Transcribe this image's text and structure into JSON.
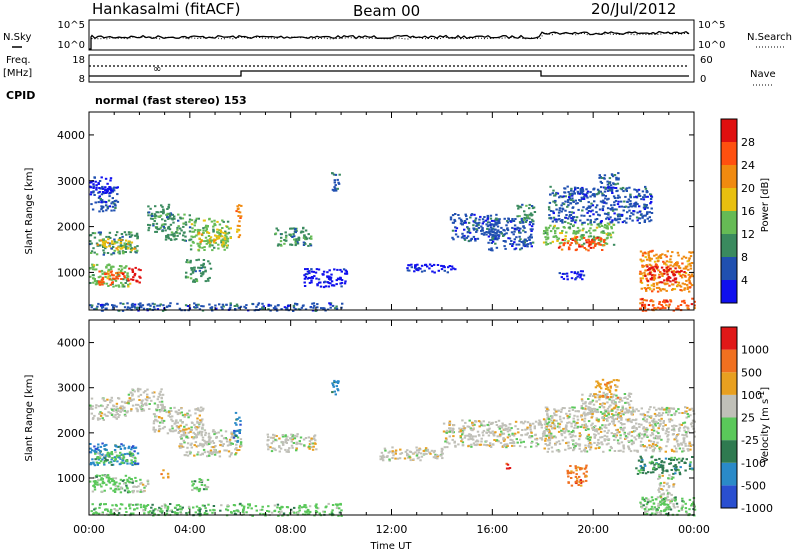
{
  "header": {
    "station": "Hankasalmi (fitACF)",
    "beam": "Beam 00",
    "date": "20/Jul/2012"
  },
  "sky_panel": {
    "left_label": "N.Sky",
    "right_label": "N.Search",
    "left_ticks": [
      "10^5",
      "10^0"
    ],
    "right_ticks": [
      "10^5",
      "10^0"
    ]
  },
  "freq_panel": {
    "left_label_line1": "Freq.",
    "left_label_line2": "[MHz]",
    "left_ticks": [
      "18",
      "8"
    ],
    "right_label": "Nave",
    "right_ticks": [
      "60",
      "0"
    ],
    "cpid_label": "CPID",
    "mode_text": "normal (fast stereo) 153"
  },
  "chart_data": [
    {
      "type": "heatmap",
      "name": "power",
      "ylabel": "Slant Range [km]",
      "xlabel": "",
      "x_ticks": [
        "00:00",
        "04:00",
        "08:00",
        "12:00",
        "16:00",
        "20:00",
        "00:00"
      ],
      "y_ticks": [
        1000,
        2000,
        3000,
        4000
      ],
      "ylim": [
        180,
        4500
      ],
      "colorbar": {
        "label": "Power [dB]",
        "ticks": [
          4,
          8,
          12,
          16,
          20,
          24,
          28
        ],
        "range": [
          0,
          30
        ],
        "colors": [
          "#1010ee",
          "#2050b0",
          "#3a8a5e",
          "#66bb55",
          "#e8c010",
          "#f08a10",
          "#ff5010",
          "#e01010"
        ]
      },
      "regions": [
        {
          "t": [
            0.0,
            1.1
          ],
          "r": [
            2350,
            2900
          ],
          "level": 1
        },
        {
          "t": [
            0.0,
            0.9
          ],
          "r": [
            2700,
            3100
          ],
          "level": 0
        },
        {
          "t": [
            0.0,
            1.9
          ],
          "r": [
            1400,
            1900
          ],
          "level": 2
        },
        {
          "t": [
            0.3,
            1.8
          ],
          "r": [
            1500,
            1750
          ],
          "level": 4
        },
        {
          "t": [
            0.0,
            1.6
          ],
          "r": [
            700,
            1200
          ],
          "level": 3
        },
        {
          "t": [
            0.3,
            1.4
          ],
          "r": [
            750,
            1050
          ],
          "level": 6
        },
        {
          "t": [
            1.5,
            2.0
          ],
          "r": [
            800,
            1150
          ],
          "level": 7
        },
        {
          "t": [
            2.3,
            3.2
          ],
          "r": [
            1900,
            2500
          ],
          "level": 2
        },
        {
          "t": [
            3.0,
            4.0
          ],
          "r": [
            1700,
            2300
          ],
          "level": 2
        },
        {
          "t": [
            4.0,
            5.6
          ],
          "r": [
            1500,
            2200
          ],
          "level": 3
        },
        {
          "t": [
            4.3,
            5.5
          ],
          "r": [
            1650,
            1950
          ],
          "level": 4
        },
        {
          "t": [
            3.8,
            4.8
          ],
          "r": [
            800,
            1300
          ],
          "level": 2
        },
        {
          "t": [
            5.8,
            6.0
          ],
          "r": [
            1500,
            2500
          ],
          "level": 5
        },
        {
          "t": [
            7.2,
            8.8
          ],
          "r": [
            1600,
            2000
          ],
          "level": 2
        },
        {
          "t": [
            8.5,
            10.2
          ],
          "r": [
            700,
            1100
          ],
          "level": 0
        },
        {
          "t": [
            9.6,
            9.9
          ],
          "r": [
            2800,
            3200
          ],
          "level": 1
        },
        {
          "t": [
            14.3,
            16.2
          ],
          "r": [
            1700,
            2300
          ],
          "level": 1
        },
        {
          "t": [
            15.8,
            17.6
          ],
          "r": [
            1500,
            2200
          ],
          "level": 1
        },
        {
          "t": [
            16.9,
            17.7
          ],
          "r": [
            2100,
            2500
          ],
          "level": 2
        },
        {
          "t": [
            18.0,
            20.8
          ],
          "r": [
            1600,
            2100
          ],
          "level": 3
        },
        {
          "t": [
            18.6,
            20.4
          ],
          "r": [
            1500,
            1800
          ],
          "level": 6
        },
        {
          "t": [
            18.2,
            22.3
          ],
          "r": [
            2100,
            2900
          ],
          "level": 1
        },
        {
          "t": [
            20.2,
            21.0
          ],
          "r": [
            2800,
            3200
          ],
          "level": 1
        },
        {
          "t": [
            18.6,
            19.6
          ],
          "r": [
            850,
            1050
          ],
          "level": 0
        },
        {
          "t": [
            21.8,
            23.9
          ],
          "r": [
            600,
            1500
          ],
          "level": 5
        },
        {
          "t": [
            22.0,
            23.6
          ],
          "r": [
            800,
            1150
          ],
          "level": 7
        },
        {
          "t": [
            21.8,
            24.0
          ],
          "r": [
            180,
            450
          ],
          "level": 6
        },
        {
          "t": [
            0.0,
            10.0
          ],
          "r": [
            180,
            350
          ],
          "level": 1
        },
        {
          "t": [
            12.5,
            14.5
          ],
          "r": [
            1000,
            1200
          ],
          "level": 0
        }
      ]
    },
    {
      "type": "heatmap",
      "name": "velocity",
      "ylabel": "Slant Range [km]",
      "xlabel": "Time UT",
      "x_ticks": [
        "00:00",
        "04:00",
        "08:00",
        "12:00",
        "16:00",
        "20:00",
        "00:00"
      ],
      "y_ticks": [
        1000,
        2000,
        3000,
        4000
      ],
      "ylim": [
        180,
        4500
      ],
      "colorbar": {
        "label": "Velocity [m s^-1]",
        "ticks": [
          1000,
          500,
          100,
          25,
          -25,
          -100,
          -500,
          -1000
        ],
        "colors": [
          "#2a4fd0",
          "#2a8ac8",
          "#2f7a50",
          "#5ac85a",
          "#c0c0b8",
          "#e8a020",
          "#f07020",
          "#e01818"
        ]
      },
      "regions": [
        {
          "t": [
            0.0,
            1.5
          ],
          "r": [
            2300,
            2800
          ],
          "level": 4
        },
        {
          "t": [
            1.5,
            3.0
          ],
          "r": [
            2500,
            3000
          ],
          "level": 4
        },
        {
          "t": [
            2.5,
            4.5
          ],
          "r": [
            2000,
            2600
          ],
          "level": 4
        },
        {
          "t": [
            3.5,
            6.0
          ],
          "r": [
            1500,
            2100
          ],
          "level": 4
        },
        {
          "t": [
            0.0,
            1.9
          ],
          "r": [
            1300,
            1800
          ],
          "level": 1
        },
        {
          "t": [
            0.2,
            1.8
          ],
          "r": [
            1350,
            1600
          ],
          "level": 3
        },
        {
          "t": [
            0.0,
            1.8
          ],
          "r": [
            700,
            1100
          ],
          "level": 3
        },
        {
          "t": [
            1.7,
            2.3
          ],
          "r": [
            700,
            1000
          ],
          "level": 4
        },
        {
          "t": [
            4.0,
            4.7
          ],
          "r": [
            700,
            1000
          ],
          "level": 3
        },
        {
          "t": [
            5.7,
            6.0
          ],
          "r": [
            1800,
            2500
          ],
          "level": 1
        },
        {
          "t": [
            7.0,
            9.0
          ],
          "r": [
            1600,
            2000
          ],
          "level": 4
        },
        {
          "t": [
            9.6,
            9.9
          ],
          "r": [
            2800,
            3200
          ],
          "level": 1
        },
        {
          "t": [
            11.5,
            14.0
          ],
          "r": [
            1400,
            1700
          ],
          "level": 4
        },
        {
          "t": [
            14.0,
            18.5
          ],
          "r": [
            1700,
            2300
          ],
          "level": 4
        },
        {
          "t": [
            18.0,
            24.0
          ],
          "r": [
            1600,
            2600
          ],
          "level": 4
        },
        {
          "t": [
            19.5,
            21.5
          ],
          "r": [
            2300,
            2900
          ],
          "level": 4
        },
        {
          "t": [
            20.0,
            21.0
          ],
          "r": [
            2800,
            3200
          ],
          "level": 5
        },
        {
          "t": [
            18.9,
            19.7
          ],
          "r": [
            850,
            1300
          ],
          "level": 6
        },
        {
          "t": [
            21.6,
            23.9
          ],
          "r": [
            1100,
            1500
          ],
          "level": 2
        },
        {
          "t": [
            22.5,
            23.2
          ],
          "r": [
            300,
            1100
          ],
          "level": 4
        },
        {
          "t": [
            21.8,
            24.0
          ],
          "r": [
            180,
            600
          ],
          "level": 3
        },
        {
          "t": [
            16.5,
            16.7
          ],
          "r": [
            1200,
            1400
          ],
          "level": 7
        },
        {
          "t": [
            2.8,
            3.1
          ],
          "r": [
            1000,
            1200
          ],
          "level": 5
        },
        {
          "t": [
            0.0,
            10.0
          ],
          "r": [
            180,
            450
          ],
          "level": 3
        }
      ]
    }
  ]
}
